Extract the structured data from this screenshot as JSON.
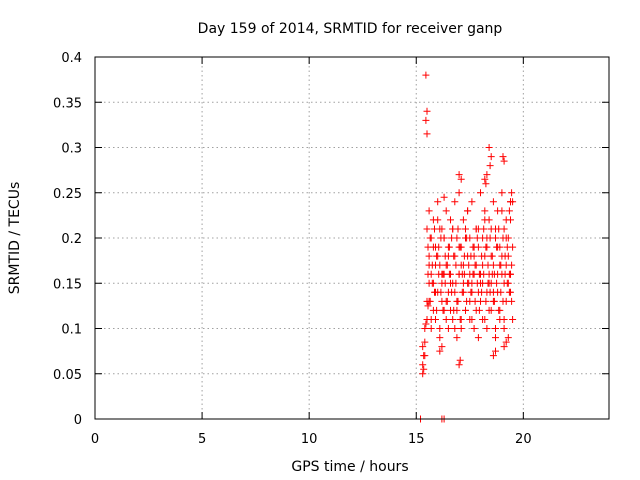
{
  "chart_data": {
    "type": "scatter",
    "title": "Day 159 of 2014, SRMTID for receiver ganp",
    "xlabel": "GPS time / hours",
    "ylabel": "SRMTID / TECUs",
    "xlim": [
      0,
      24
    ],
    "ylim": [
      0,
      0.4
    ],
    "xticks": [
      0,
      5,
      10,
      15,
      20
    ],
    "yticks": [
      0,
      0.05,
      0.1,
      0.15,
      0.2,
      0.25,
      0.3,
      0.35,
      0.4
    ],
    "grid": true,
    "marker": "plus",
    "color": "#ff0000",
    "series": [
      {
        "name": "SRMTID",
        "x": [
          15.2,
          15.2,
          16.2,
          16.3,
          15.45,
          15.5,
          15.45,
          15.5,
          17.0,
          17.1,
          16.3,
          18.2,
          18.25,
          19.05,
          19.1,
          18.4,
          18.5,
          18.45,
          18.3,
          15.3,
          15.35,
          15.3,
          15.4,
          15.35,
          15.3,
          15.4,
          16.1,
          16.2,
          17.0,
          17.05,
          18.6,
          18.7,
          19.1,
          19.2,
          15.5,
          15.6,
          15.7,
          15.8,
          15.9,
          16.0,
          16.1,
          16.2,
          16.3,
          16.4,
          16.5,
          16.6,
          16.7,
          16.8,
          16.9,
          17.0,
          17.1,
          17.2,
          17.3,
          17.4,
          17.5,
          17.6,
          17.7,
          17.8,
          17.9,
          18.0,
          18.1,
          18.2,
          18.3,
          18.4,
          18.5,
          18.6,
          18.7,
          18.8,
          18.9,
          19.0,
          19.1,
          19.2,
          19.3,
          19.4,
          15.5,
          15.6,
          15.7,
          15.8,
          15.9,
          16.0,
          16.1,
          16.2,
          16.3,
          16.4,
          16.5,
          16.6,
          16.7,
          16.8,
          16.9,
          17.0,
          17.1,
          17.2,
          17.3,
          17.4,
          17.5,
          17.6,
          17.7,
          17.8,
          17.9,
          18.0,
          18.1,
          18.2,
          18.3,
          18.4,
          18.5,
          18.6,
          18.7,
          18.8,
          18.9,
          19.0,
          19.1,
          19.2,
          19.3,
          19.4,
          15.55,
          15.65,
          15.75,
          15.85,
          15.95,
          16.05,
          16.15,
          16.25,
          16.35,
          16.45,
          16.55,
          16.65,
          16.75,
          16.85,
          16.95,
          17.05,
          17.15,
          17.25,
          17.35,
          17.45,
          17.55,
          17.65,
          17.75,
          17.85,
          17.95,
          18.05,
          18.15,
          18.25,
          18.35,
          18.45,
          18.55,
          18.65,
          18.75,
          18.85,
          18.95,
          19.05,
          19.15,
          19.25,
          19.35,
          19.45,
          15.55,
          15.65,
          15.75,
          15.85,
          15.95,
          16.05,
          16.15,
          16.25,
          16.35,
          16.45,
          16.55,
          16.65,
          16.75,
          16.85,
          16.95,
          17.05,
          17.15,
          17.25,
          17.35,
          17.45,
          17.55,
          17.65,
          17.75,
          17.85,
          17.95,
          18.05,
          18.15,
          18.25,
          18.35,
          18.45,
          18.55,
          18.65,
          18.75,
          18.85,
          18.95,
          19.05,
          19.15,
          19.25,
          19.35,
          19.45,
          15.6,
          15.8,
          16.0,
          16.2,
          16.4,
          16.6,
          16.8,
          17.0,
          17.2,
          17.4,
          17.6,
          17.8,
          18.0,
          18.2,
          18.4,
          18.6,
          18.8,
          19.0,
          19.2,
          19.4,
          15.7,
          15.9,
          16.1,
          16.3,
          16.5,
          16.7,
          16.9,
          17.1,
          17.3,
          17.5,
          17.7,
          17.9,
          18.1,
          18.3,
          18.5,
          18.7,
          18.9,
          19.1,
          19.3,
          19.5,
          15.6,
          15.8,
          16.0,
          16.2,
          16.4,
          16.6,
          16.8,
          17.0,
          17.2,
          17.4,
          17.6,
          17.8,
          18.0,
          18.2,
          18.4,
          18.6,
          18.8,
          19.0,
          19.2,
          19.4,
          15.7,
          15.9,
          16.1,
          16.3,
          16.5,
          16.7,
          16.9,
          17.1,
          17.3,
          17.5,
          17.7,
          17.9,
          18.1,
          18.3,
          18.5,
          18.7,
          18.9,
          19.1,
          19.3,
          19.5,
          15.4,
          15.45,
          15.5,
          15.55,
          15.6,
          19.4,
          19.45,
          19.5,
          19.35,
          19.4
        ],
        "y": [
          0.0,
          0.0,
          0.0,
          0.0,
          0.38,
          0.34,
          0.33,
          0.315,
          0.27,
          0.265,
          0.245,
          0.265,
          0.26,
          0.29,
          0.285,
          0.3,
          0.29,
          0.28,
          0.27,
          0.05,
          0.055,
          0.06,
          0.07,
          0.07,
          0.08,
          0.085,
          0.075,
          0.08,
          0.06,
          0.065,
          0.07,
          0.075,
          0.08,
          0.085,
          0.21,
          0.18,
          0.16,
          0.19,
          0.14,
          0.22,
          0.17,
          0.15,
          0.2,
          0.13,
          0.18,
          0.16,
          0.21,
          0.14,
          0.12,
          0.19,
          0.17,
          0.15,
          0.2,
          0.23,
          0.16,
          0.14,
          0.18,
          0.21,
          0.19,
          0.15,
          0.17,
          0.22,
          0.2,
          0.16,
          0.18,
          0.14,
          0.21,
          0.19,
          0.17,
          0.23,
          0.15,
          0.2,
          0.18,
          0.16,
          0.13,
          0.15,
          0.11,
          0.12,
          0.17,
          0.14,
          0.1,
          0.13,
          0.16,
          0.11,
          0.14,
          0.12,
          0.15,
          0.1,
          0.13,
          0.16,
          0.11,
          0.14,
          0.12,
          0.15,
          0.13,
          0.11,
          0.16,
          0.12,
          0.14,
          0.13,
          0.15,
          0.11,
          0.14,
          0.12,
          0.15,
          0.13,
          0.1,
          0.14,
          0.12,
          0.16,
          0.11,
          0.13,
          0.15,
          0.14,
          0.19,
          0.2,
          0.17,
          0.21,
          0.18,
          0.19,
          0.2,
          0.16,
          0.18,
          0.17,
          0.19,
          0.2,
          0.18,
          0.17,
          0.21,
          0.19,
          0.16,
          0.18,
          0.2,
          0.17,
          0.18,
          0.19,
          0.17,
          0.2,
          0.16,
          0.18,
          0.21,
          0.19,
          0.17,
          0.2,
          0.18,
          0.16,
          0.19,
          0.21,
          0.17,
          0.2,
          0.18,
          0.19,
          0.16,
          0.17,
          0.16,
          0.13,
          0.15,
          0.14,
          0.12,
          0.16,
          0.14,
          0.12,
          0.15,
          0.13,
          0.16,
          0.14,
          0.12,
          0.15,
          0.13,
          0.11,
          0.14,
          0.16,
          0.13,
          0.15,
          0.14,
          0.16,
          0.13,
          0.15,
          0.12,
          0.14,
          0.16,
          0.13,
          0.15,
          0.14,
          0.16,
          0.13,
          0.15,
          0.12,
          0.14,
          0.13,
          0.16,
          0.15,
          0.14,
          0.13,
          0.23,
          0.22,
          0.24,
          0.21,
          0.23,
          0.22,
          0.24,
          0.25,
          0.22,
          0.23,
          0.24,
          0.21,
          0.25,
          0.23,
          0.22,
          0.24,
          0.23,
          0.25,
          0.22,
          0.24,
          0.1,
          0.11,
          0.09,
          0.12,
          0.1,
          0.11,
          0.09,
          0.1,
          0.12,
          0.11,
          0.1,
          0.09,
          0.11,
          0.1,
          0.12,
          0.09,
          0.11,
          0.1,
          0.09,
          0.11,
          0.17,
          0.15,
          0.18,
          0.16,
          0.17,
          0.15,
          0.18,
          0.16,
          0.17,
          0.18,
          0.15,
          0.17,
          0.16,
          0.18,
          0.15,
          0.17,
          0.16,
          0.18,
          0.17,
          0.16,
          0.2,
          0.19,
          0.21,
          0.2,
          0.19,
          0.21,
          0.2,
          0.19,
          0.21,
          0.2,
          0.19,
          0.21,
          0.2,
          0.19,
          0.21,
          0.2,
          0.19,
          0.21,
          0.2,
          0.19,
          0.1,
          0.105,
          0.11,
          0.125,
          0.13,
          0.24,
          0.25,
          0.24,
          0.23,
          0.22
        ]
      }
    ]
  }
}
